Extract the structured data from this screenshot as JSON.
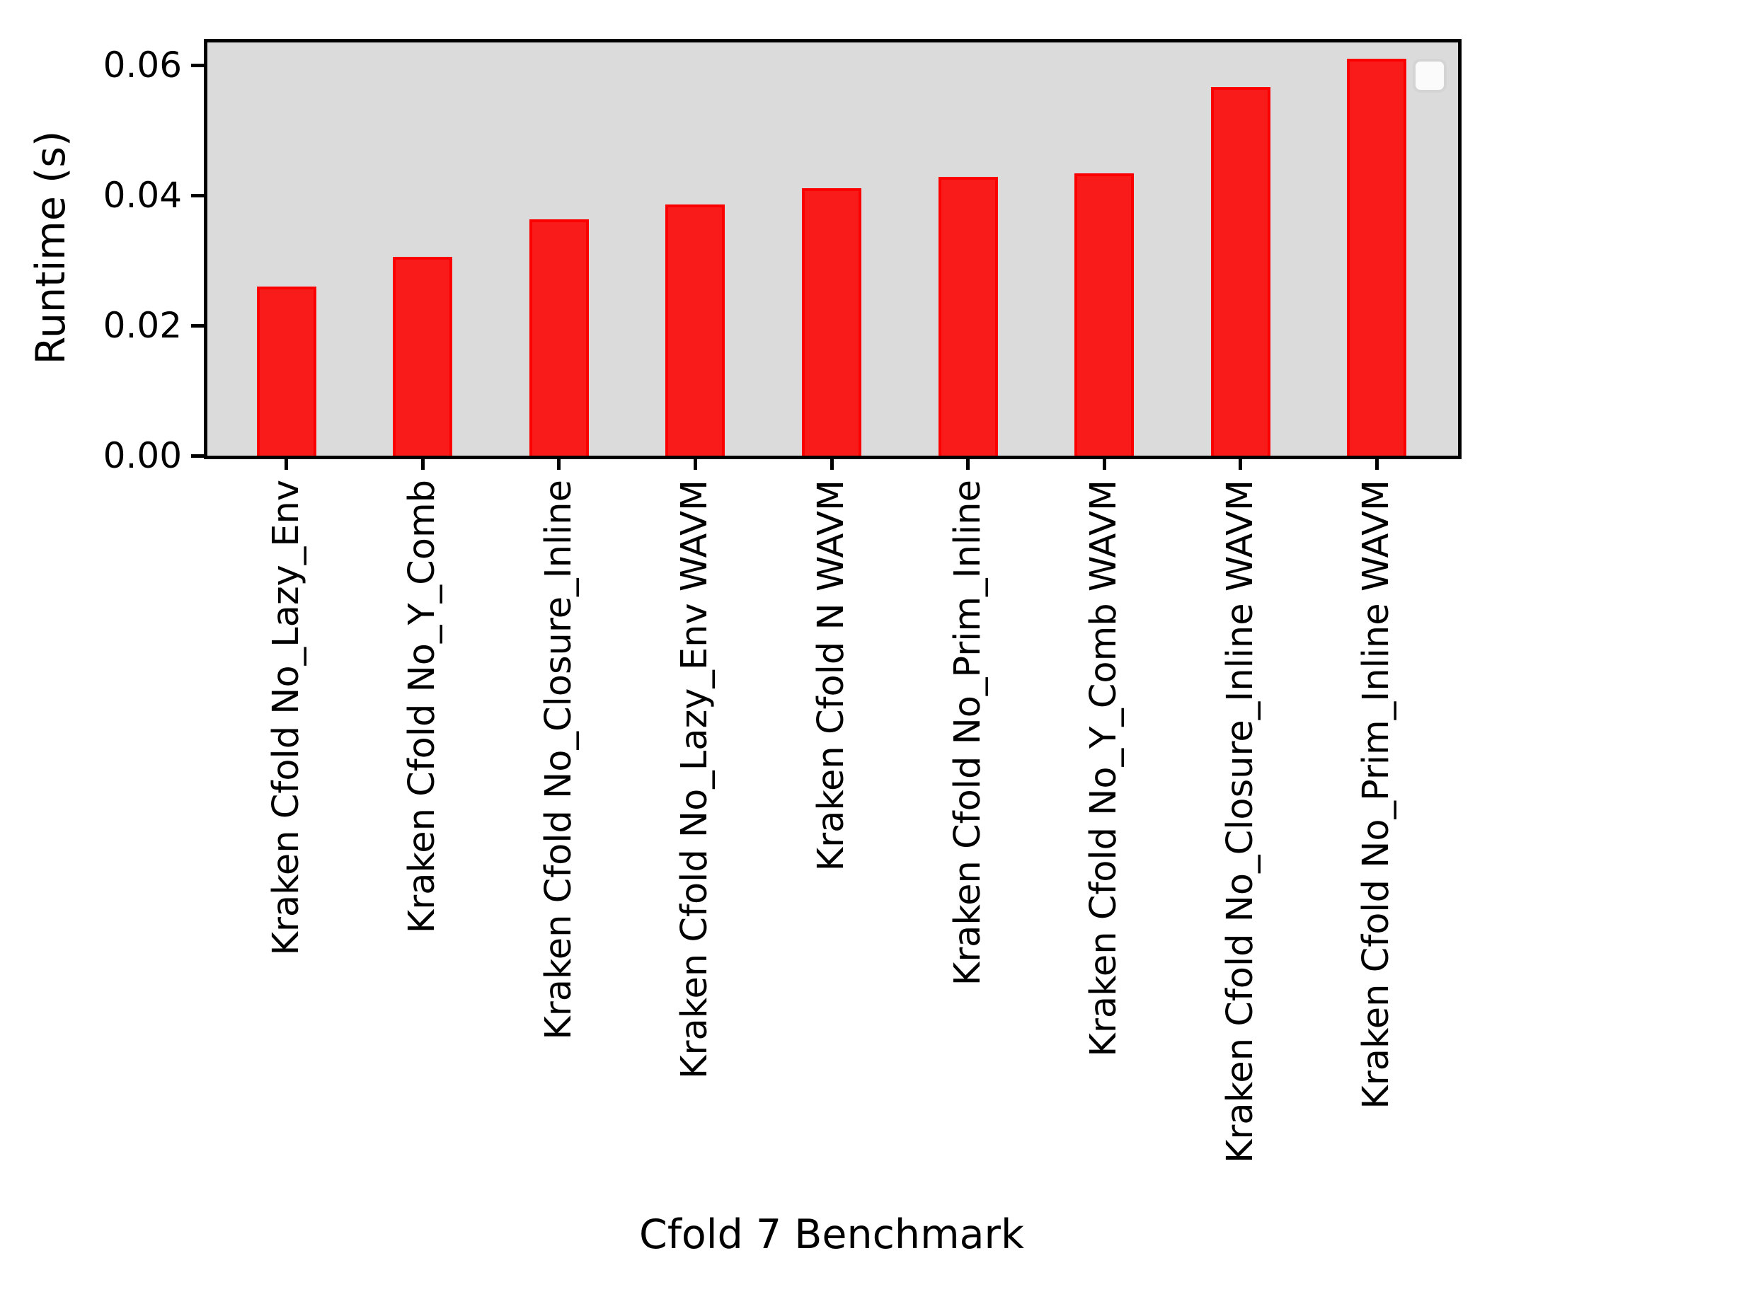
{
  "figure": {
    "background": "#ffffff",
    "plot_background": "#dbdbdb",
    "axis_color": "#000000"
  },
  "chart_data": {
    "type": "bar",
    "title": "",
    "xlabel": "Cfold 7 Benchmark",
    "ylabel": "Runtime (s)",
    "categories": [
      "Kraken Cfold No_Lazy_Env",
      "Kraken Cfold No_Y_Comb",
      "Kraken Cfold No_Closure_Inline",
      "Kraken Cfold No_Lazy_Env WAVM",
      "Kraken Cfold N WAVM",
      "Kraken Cfold No_Prim_Inline",
      "Kraken Cfold No_Y_Comb WAVM",
      "Kraken Cfold No_Closure_Inline WAVM",
      "Kraken Cfold No_Prim_Inline WAVM"
    ],
    "values": [
      0.026,
      0.0305,
      0.0363,
      0.0386,
      0.0411,
      0.0428,
      0.0434,
      0.0566,
      0.061
    ],
    "bar_color": "#f91a1a",
    "bar_edge_color": "#fa0000",
    "ylim": [
      0.0,
      0.0638
    ],
    "yticks": [
      0.0,
      0.02,
      0.04,
      0.06
    ],
    "ytick_labels": [
      "0.00",
      "0.02",
      "0.04",
      "0.06"
    ],
    "grid": false,
    "legend": {
      "visible": true,
      "entries": [],
      "position": "upper right"
    }
  }
}
